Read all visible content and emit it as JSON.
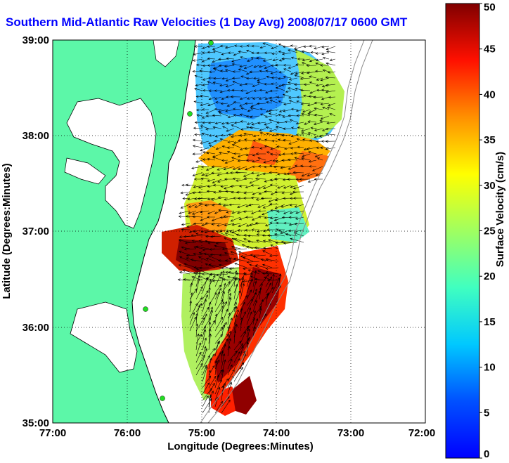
{
  "title": "Southern Mid-Atlantic Raw Velocities (1 Day Avg) 2008/07/17 0600 GMT",
  "map": {
    "xlabel": "Longitude (Degrees:Minutes)",
    "ylabel": "Latitude (Degrees:Minutes)",
    "x_ticks": [
      "77:00",
      "76:00",
      "75:00",
      "74:00",
      "73:00",
      "72:00"
    ],
    "y_ticks": [
      "39:00",
      "38:00",
      "37:00",
      "36:00",
      "35:00"
    ],
    "lon_range": [
      -77,
      -72
    ],
    "lat_range": [
      35,
      39
    ],
    "grid": "dotted"
  },
  "colorbar": {
    "label": "Surface Velocity (cm/s)",
    "ticks": [
      "0",
      "5",
      "10",
      "15",
      "20",
      "25",
      "30",
      "35",
      "40",
      "45",
      "50"
    ],
    "range": [
      0,
      50
    ],
    "colormap": "jet"
  },
  "colors": {
    "land": "#5cf7a8",
    "title": "#0000ff",
    "station": "#22dd22"
  }
}
